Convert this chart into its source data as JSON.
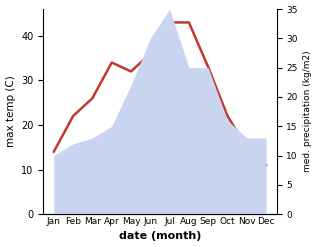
{
  "months": [
    "Jan",
    "Feb",
    "Mar",
    "Apr",
    "May",
    "Jun",
    "Jul",
    "Aug",
    "Sep",
    "Oct",
    "Nov",
    "Dec"
  ],
  "max_temp": [
    14,
    22,
    26,
    34,
    32,
    36,
    43,
    43,
    33,
    22,
    15,
    11
  ],
  "precipitation": [
    10,
    12,
    13,
    15,
    22,
    30,
    35,
    25,
    25,
    16,
    13,
    13
  ],
  "temp_color": "#c0392b",
  "precip_color_fill": "#c8d4f0",
  "left_ylim": [
    0,
    46
  ],
  "left_yticks": [
    0,
    10,
    20,
    30,
    40
  ],
  "right_ylim": [
    0,
    35
  ],
  "right_yticks": [
    0,
    5,
    10,
    15,
    20,
    25,
    30,
    35
  ],
  "xlabel": "date (month)",
  "ylabel_left": "max temp (C)",
  "ylabel_right": "med. precipitation (kg/m2)",
  "bg_color": "#ffffff"
}
